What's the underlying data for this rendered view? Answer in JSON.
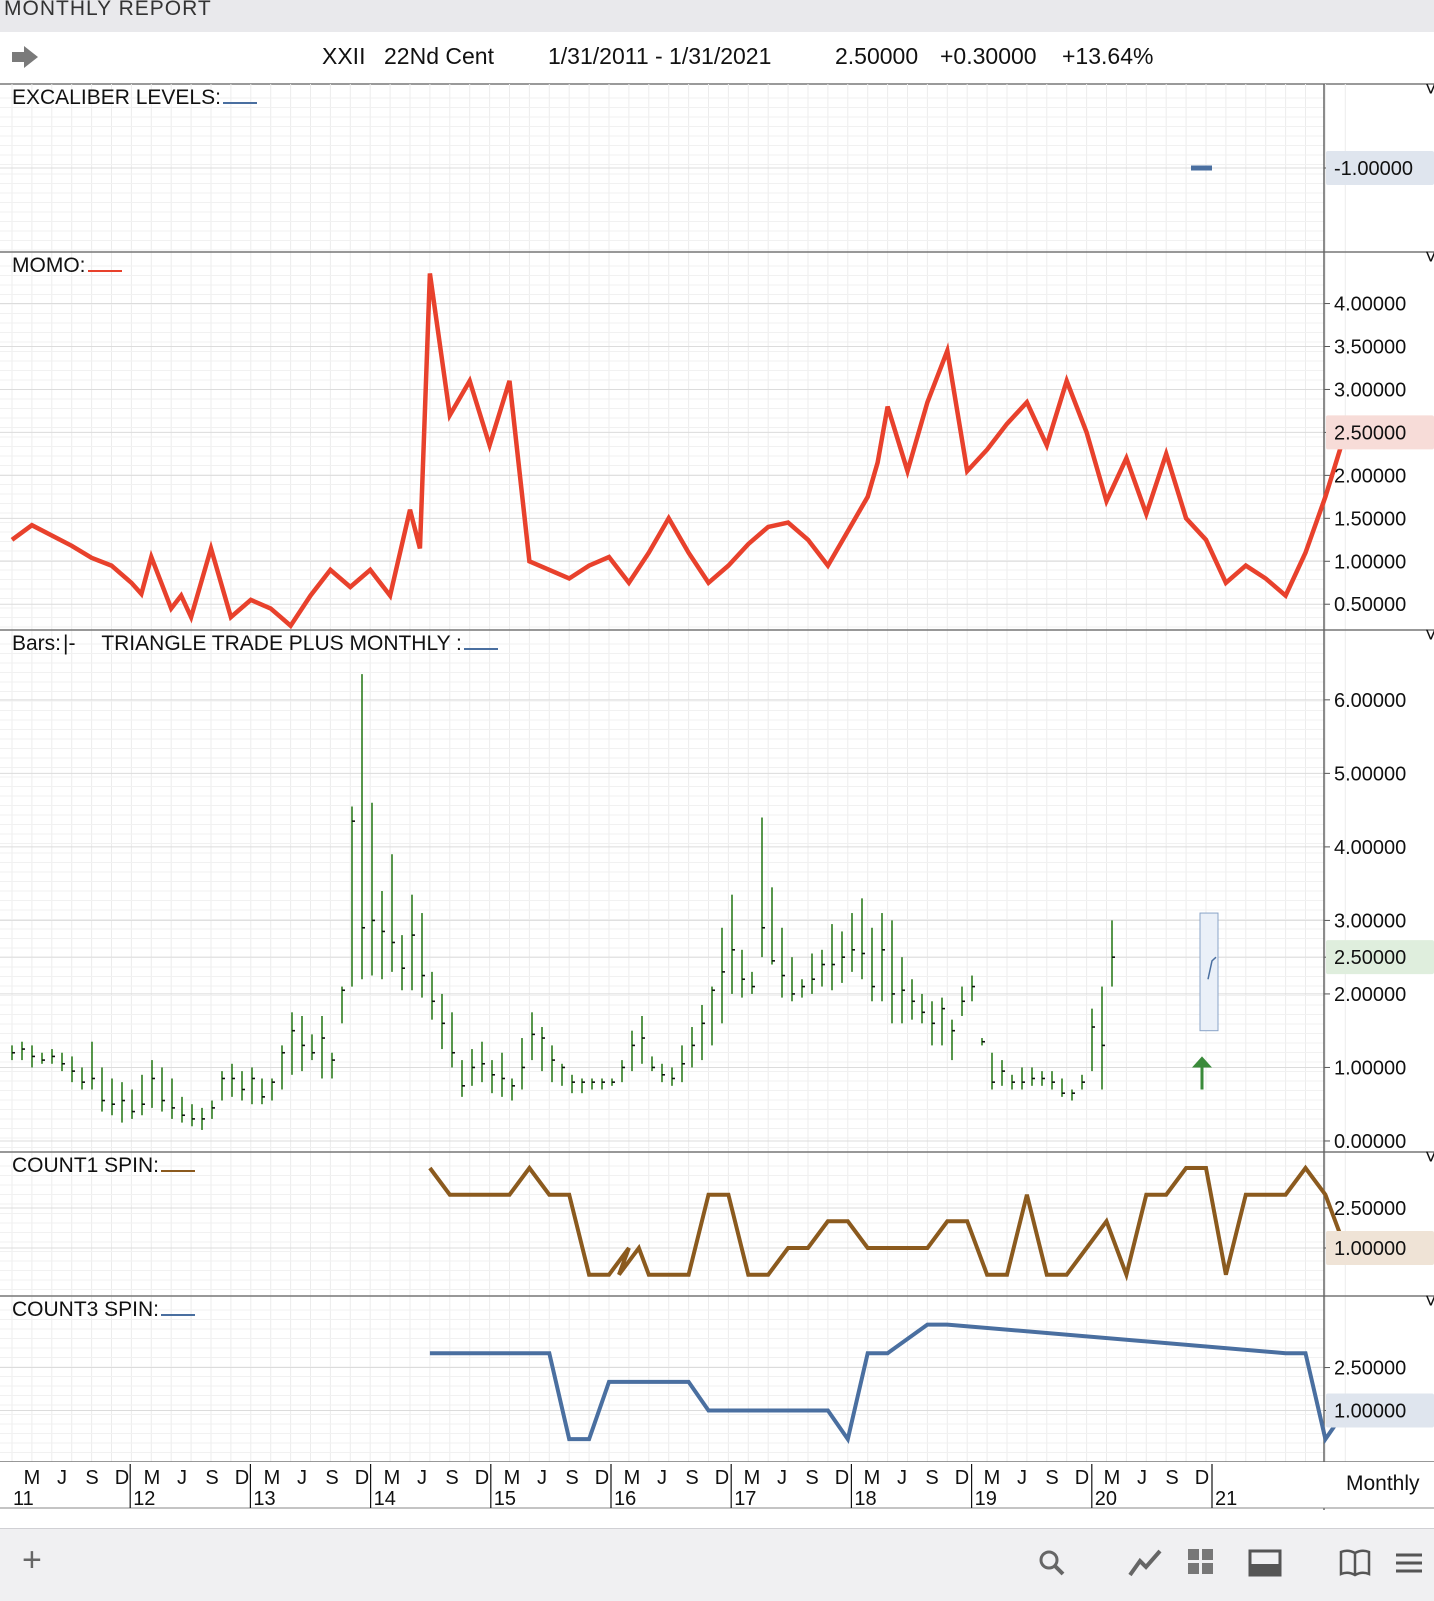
{
  "window": {
    "title": "MONTHLY REPORT"
  },
  "header": {
    "symbol": "XXII",
    "name": "22Nd Cent",
    "date_range": "1/31/2011 - 1/31/2021",
    "last": "2.50000",
    "change": "+0.30000",
    "change_pct": "+13.64%"
  },
  "colors": {
    "momo": "#e8412c",
    "bars": "#2e7d1f",
    "count1": "#8b5a1e",
    "count3": "#4a6fa0",
    "excaliber": "#4a6fa0"
  },
  "panels": {
    "excaliber": {
      "label": "EXCALIBER LEVELS:",
      "value_label": "-1.00000"
    },
    "momo": {
      "label": "MOMO:",
      "last_label": "2.50000"
    },
    "bars": {
      "label": "Bars:",
      "bars_style": "|-",
      "study_label": "TRIANGLE TRADE PLUS MONTHLY :",
      "last_label": "2.50000"
    },
    "count1": {
      "label": "COUNT1 SPIN:",
      "last_label": "1.00000"
    },
    "count3": {
      "label": "COUNT3 SPIN:",
      "last_label": "1.00000"
    }
  },
  "x_axis": {
    "months": [
      "M",
      "J",
      "S",
      "D",
      "M",
      "J",
      "S",
      "D",
      "M",
      "J",
      "S",
      "D",
      "M",
      "J",
      "S",
      "D",
      "M",
      "J",
      "S",
      "D",
      "M",
      "J",
      "S",
      "D",
      "M",
      "J",
      "S",
      "D",
      "M",
      "J",
      "S",
      "D",
      "M",
      "J",
      "S",
      "D",
      "M",
      "J",
      "S",
      "D"
    ],
    "years": [
      "11",
      "12",
      "13",
      "14",
      "15",
      "16",
      "17",
      "18",
      "19",
      "20",
      "21"
    ],
    "period_label": "Monthly"
  },
  "chart_data": [
    {
      "type": "line",
      "title": "EXCALIBER LEVELS",
      "series": [
        {
          "name": "EXCALIBER LEVELS",
          "values": [
            {
              "x": "2020-12",
              "y": -1.0
            }
          ]
        }
      ],
      "ylim": [
        -1.6,
        -0.4
      ],
      "yticks": [
        "-1.00000"
      ]
    },
    {
      "type": "line",
      "title": "MOMO",
      "ylim": [
        0.2,
        4.6
      ],
      "yticks": [
        "4.00000",
        "3.50000",
        "3.00000",
        "2.50000",
        "2.00000",
        "1.50000",
        "1.00000",
        "0.50000"
      ],
      "series": [
        {
          "name": "MOMO",
          "x_index": [
            0,
            1,
            2,
            3,
            4,
            5,
            5.5,
            6,
            6.5,
            7,
            8,
            8.5,
            9,
            10,
            11,
            12,
            13,
            13.5,
            14,
            15,
            16,
            17,
            18,
            19,
            20,
            20.5,
            21,
            22,
            23,
            24,
            25,
            26,
            28,
            29,
            30,
            31,
            32,
            33,
            34,
            35,
            36,
            37,
            38,
            39,
            40,
            41,
            42,
            43,
            43.5,
            44,
            45,
            46,
            47,
            48,
            49,
            50,
            51,
            52,
            53,
            54,
            55,
            56,
            57,
            58,
            59,
            60,
            61,
            62,
            63,
            64,
            65,
            66,
            67
          ],
          "values": [
            1.25,
            1.42,
            1.3,
            1.18,
            1.04,
            0.95,
            0.85,
            0.75,
            0.62,
            1.05,
            0.45,
            0.6,
            0.35,
            1.15,
            0.35,
            0.55,
            0.45,
            0.35,
            0.25,
            0.6,
            0.9,
            0.7,
            0.9,
            0.6,
            1.6,
            1.15,
            4.35,
            2.7,
            3.1,
            2.35,
            3.1,
            1.0,
            0.8,
            0.95,
            1.05,
            0.75,
            1.1,
            1.5,
            1.1,
            0.75,
            0.95,
            1.2,
            1.4,
            1.45,
            1.25,
            0.95,
            1.35,
            1.75,
            2.15,
            2.8,
            2.05,
            2.85,
            3.45,
            2.05,
            2.3,
            2.6,
            2.85,
            2.35,
            3.1,
            2.5,
            1.7,
            2.2,
            1.55,
            2.25,
            1.5,
            1.25,
            0.75,
            0.95,
            0.8,
            0.6,
            1.1,
            1.75,
            2.5
          ]
        }
      ]
    },
    {
      "type": "bar",
      "title": "TRIANGLE TRADE PLUS MONTHLY",
      "ylim": [
        -0.15,
        6.95
      ],
      "yticks": [
        "6.00000",
        "5.00000",
        "4.00000",
        "3.00000",
        "2.50000",
        "2.00000",
        "1.00000",
        "0.00000"
      ],
      "series": [
        {
          "name": "XXII monthly bars (high, low, close)",
          "highs": [
            1.3,
            1.35,
            1.3,
            1.2,
            1.25,
            1.2,
            1.15,
            1.0,
            1.35,
            1.0,
            0.85,
            0.8,
            0.7,
            0.9,
            1.1,
            1.0,
            0.85,
            0.6,
            0.5,
            0.45,
            0.55,
            0.95,
            1.05,
            0.95,
            1.0,
            0.85,
            0.85,
            1.3,
            1.75,
            1.7,
            1.45,
            1.7,
            1.2,
            2.1,
            4.55,
            6.35,
            4.6,
            3.4,
            3.9,
            2.8,
            3.35,
            3.1,
            2.3,
            2.0,
            1.75,
            1.1,
            1.25,
            1.35,
            1.1,
            1.2,
            0.85,
            1.4,
            1.75,
            1.55,
            1.3,
            1.05,
            0.9,
            0.85,
            0.85,
            0.85,
            0.85,
            1.1,
            1.5,
            1.7,
            1.15,
            1.05,
            1.0,
            1.3,
            1.55,
            1.85,
            2.1,
            2.9,
            3.35,
            2.6,
            2.3,
            4.4,
            3.45,
            2.9,
            2.5,
            2.2,
            2.55,
            2.6,
            2.95,
            2.85,
            3.1,
            3.3,
            2.9,
            3.1,
            3.0,
            2.5,
            2.2,
            2.0,
            1.9,
            1.95,
            1.65,
            2.1,
            2.25,
            1.4,
            1.2,
            1.1,
            0.9,
            1.0,
            1.0,
            0.95,
            0.95,
            0.85,
            0.7,
            0.9,
            1.8,
            2.1,
            3.0
          ],
          "lows": [
            1.1,
            1.1,
            1.0,
            1.05,
            1.05,
            0.95,
            0.8,
            0.7,
            0.7,
            0.4,
            0.35,
            0.25,
            0.3,
            0.35,
            0.45,
            0.4,
            0.3,
            0.25,
            0.2,
            0.15,
            0.3,
            0.55,
            0.6,
            0.55,
            0.5,
            0.5,
            0.55,
            0.7,
            0.9,
            0.95,
            1.1,
            0.85,
            0.85,
            1.6,
            2.1,
            2.2,
            2.25,
            2.2,
            2.3,
            2.05,
            2.05,
            1.95,
            1.65,
            1.25,
            1.0,
            0.6,
            0.75,
            0.8,
            0.65,
            0.6,
            0.55,
            0.7,
            1.1,
            0.95,
            0.8,
            0.75,
            0.65,
            0.65,
            0.7,
            0.7,
            0.75,
            0.8,
            0.95,
            1.05,
            0.95,
            0.8,
            0.75,
            0.8,
            1.0,
            1.1,
            1.3,
            1.6,
            2.0,
            1.95,
            2.0,
            2.5,
            2.4,
            1.95,
            1.9,
            1.95,
            2.0,
            2.1,
            2.05,
            2.15,
            2.3,
            2.2,
            1.9,
            1.9,
            1.6,
            1.6,
            1.65,
            1.6,
            1.3,
            1.3,
            1.1,
            1.7,
            1.9,
            1.3,
            0.7,
            0.75,
            0.7,
            0.7,
            0.75,
            0.75,
            0.7,
            0.6,
            0.55,
            0.7,
            0.95,
            0.7,
            2.1
          ],
          "closes": [
            1.2,
            1.25,
            1.15,
            1.1,
            1.15,
            1.05,
            0.95,
            0.8,
            0.85,
            0.55,
            0.5,
            0.55,
            0.4,
            0.5,
            0.85,
            0.55,
            0.45,
            0.35,
            0.3,
            0.3,
            0.45,
            0.85,
            0.85,
            0.7,
            0.85,
            0.6,
            0.8,
            1.2,
            1.5,
            1.3,
            1.2,
            1.4,
            1.1,
            2.05,
            4.35,
            2.9,
            3.0,
            2.85,
            2.7,
            2.35,
            2.8,
            2.25,
            1.9,
            1.6,
            1.2,
            0.75,
            1.0,
            1.05,
            0.9,
            0.85,
            0.75,
            1.0,
            1.45,
            1.4,
            1.1,
            1.0,
            0.8,
            0.8,
            0.8,
            0.8,
            0.8,
            1.0,
            1.3,
            1.4,
            1.0,
            0.9,
            0.85,
            1.05,
            1.3,
            1.6,
            2.05,
            2.3,
            2.6,
            2.2,
            2.1,
            2.9,
            2.45,
            2.25,
            2.0,
            2.1,
            2.2,
            2.4,
            2.4,
            2.5,
            2.6,
            2.55,
            2.1,
            2.6,
            2.0,
            2.05,
            1.9,
            1.75,
            1.6,
            1.8,
            1.5,
            1.9,
            2.1,
            1.35,
            0.8,
            0.95,
            0.8,
            0.8,
            0.85,
            0.85,
            0.8,
            0.65,
            0.65,
            0.8,
            1.55,
            1.3,
            2.5
          ]
        }
      ]
    },
    {
      "type": "line",
      "title": "COUNT1 SPIN",
      "ylim": [
        -0.8,
        4.6
      ],
      "yticks": [
        "2.50000",
        "1.00000"
      ],
      "series": [
        {
          "name": "COUNT1 SPIN",
          "x_index": [
            21,
            22,
            24,
            25,
            26,
            27,
            28,
            29,
            30,
            31,
            30.5,
            31.5,
            32,
            33,
            34,
            35,
            36,
            37,
            38,
            39,
            40,
            41,
            42,
            43,
            44,
            45,
            46,
            47,
            48,
            49,
            50,
            51,
            52,
            53,
            54,
            55,
            56,
            57,
            58,
            59,
            60,
            61,
            62,
            63,
            64,
            65,
            66,
            67
          ],
          "values": [
            4,
            3,
            3,
            3,
            4,
            3,
            3,
            0,
            0,
            1,
            0,
            1,
            0,
            0,
            0,
            3,
            3,
            0,
            0,
            1,
            1,
            2,
            2,
            1,
            1,
            1,
            1,
            2,
            2,
            0,
            0,
            3,
            0,
            0,
            1,
            2,
            0,
            3,
            3,
            4,
            4,
            0,
            3,
            3,
            3,
            4,
            3,
            1
          ]
        }
      ]
    },
    {
      "type": "line",
      "title": "COUNT3 SPIN",
      "ylim": [
        -0.8,
        5.0
      ],
      "yticks": [
        "2.50000",
        "1.00000"
      ],
      "series": [
        {
          "name": "COUNT3 SPIN",
          "x_index": [
            21,
            27,
            28,
            29,
            30,
            34,
            35,
            41,
            42,
            43,
            44,
            46,
            47,
            64,
            65,
            66,
            67
          ],
          "values": [
            3,
            3,
            0,
            0,
            2,
            2,
            1,
            1,
            0,
            3,
            3,
            4,
            4,
            3,
            3,
            0,
            1
          ]
        }
      ]
    }
  ]
}
